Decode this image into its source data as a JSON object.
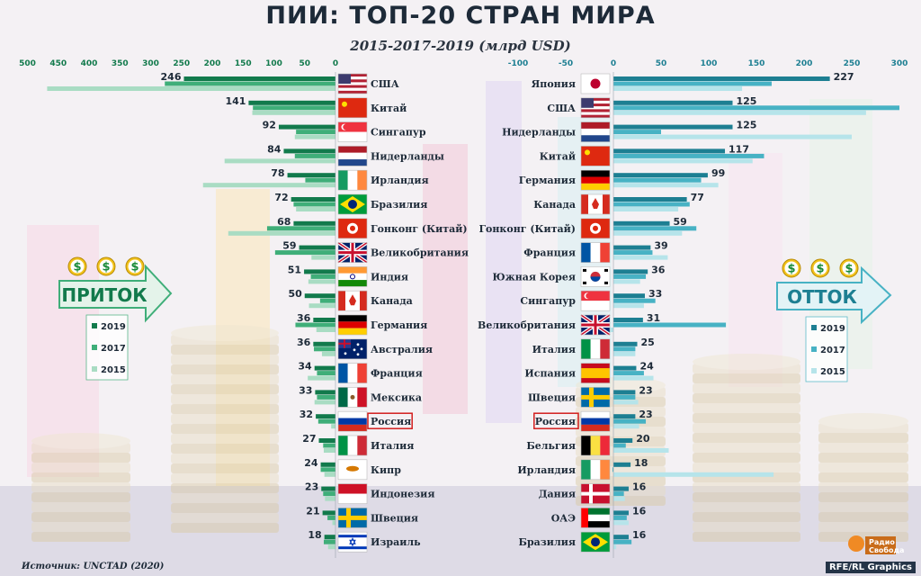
{
  "title": "ПИИ: ТОП-20 СТРАН МИРА",
  "subtitle": "2015-2017-2019 (млрд USD)",
  "source": "Источник: UNCTAD (2020)",
  "brand": "RFE/RL Graphics",
  "logo_text": [
    "Радио",
    "Свобода"
  ],
  "colors": {
    "inflow_2019": "#127a4c",
    "inflow_2017": "#3fae79",
    "inflow_2015": "#a9dcc3",
    "outflow_2019": "#1d7f92",
    "outflow_2017": "#47b2c4",
    "outflow_2015": "#b6e4ea",
    "russia_frame": "#d21d1d"
  },
  "chart_data": [
    {
      "type": "bar",
      "orientation": "horizontal",
      "direction": "right-to-left",
      "label": "ПРИТОК",
      "legend": [
        "2019",
        "2017",
        "2015"
      ],
      "legend_position": "left-middle",
      "xlim": [
        500,
        0
      ],
      "xticks": [
        500,
        450,
        400,
        350,
        300,
        250,
        200,
        150,
        100,
        50,
        0
      ],
      "categories": [
        "США",
        "Китай",
        "Сингапур",
        "Нидерланды",
        "Ирландия",
        "Бразилия",
        "Гонконг (Китай)",
        "Великобритания",
        "Индия",
        "Канада",
        "Германия",
        "Австралия",
        "Франция",
        "Мексика",
        "Россия",
        "Италия",
        "Кипр",
        "Индонезия",
        "Швеция",
        "Израиль"
      ],
      "highlight": "Россия",
      "series": [
        {
          "name": "2019",
          "values": [
            246,
            141,
            92,
            84,
            78,
            72,
            68,
            59,
            51,
            50,
            36,
            36,
            34,
            33,
            32,
            27,
            24,
            23,
            21,
            18
          ]
        },
        {
          "name": "2017",
          "values": [
            277,
            134,
            64,
            66,
            49,
            68,
            111,
            98,
            40,
            25,
            65,
            35,
            30,
            30,
            28,
            20,
            24,
            20,
            13,
            19
          ]
        },
        {
          "name": "2015",
          "values": [
            468,
            135,
            66,
            180,
            215,
            64,
            174,
            39,
            44,
            43,
            31,
            22,
            45,
            34,
            7,
            19,
            18,
            17,
            5,
            12
          ]
        }
      ]
    },
    {
      "type": "bar",
      "orientation": "horizontal",
      "direction": "left-to-right",
      "label": "ОТТОК",
      "legend": [
        "2019",
        "2017",
        "2015"
      ],
      "legend_position": "right-middle",
      "xlim": [
        -100,
        300
      ],
      "xticks": [
        -100,
        -50,
        0,
        50,
        100,
        150,
        200,
        250,
        300
      ],
      "categories": [
        "Япония",
        "США",
        "Нидерланды",
        "Китай",
        "Германия",
        "Канада",
        "Гонконг (Китай)",
        "Франция",
        "Южная Корея",
        "Сингапур",
        "Великобритания",
        "Италия",
        "Испания",
        "Швеция",
        "Россия",
        "Бельгия",
        "Ирландия",
        "Дания",
        "ОАЭ",
        "Бразилия"
      ],
      "highlight": "Россия",
      "series": [
        {
          "name": "2019",
          "values": [
            227,
            125,
            125,
            117,
            99,
            77,
            59,
            39,
            36,
            33,
            31,
            25,
            24,
            23,
            23,
            20,
            18,
            16,
            16,
            16
          ]
        },
        {
          "name": "2017",
          "values": [
            166,
            300,
            50,
            158,
            92,
            80,
            87,
            41,
            34,
            44,
            118,
            23,
            32,
            23,
            34,
            13,
            -1,
            11,
            14,
            19
          ]
        },
        {
          "name": "2015",
          "values": [
            135,
            265,
            250,
            146,
            110,
            68,
            72,
            57,
            28,
            32,
            -8,
            23,
            42,
            26,
            27,
            58,
            168,
            12,
            16,
            3
          ]
        }
      ]
    }
  ],
  "inflow_flags": [
    "usa",
    "china",
    "singapore",
    "netherlands",
    "ireland",
    "brazil",
    "hongkong",
    "uk",
    "india",
    "canada",
    "germany",
    "australia",
    "france",
    "mexico",
    "russia",
    "italy",
    "cyprus",
    "indonesia",
    "sweden",
    "israel"
  ],
  "outflow_flags": [
    "japan",
    "usa",
    "netherlands",
    "china",
    "germany",
    "canada",
    "hongkong",
    "france",
    "southkorea",
    "singapore",
    "uk",
    "italy",
    "spain",
    "sweden",
    "russia",
    "belgium",
    "ireland",
    "denmark",
    "uae",
    "brazil"
  ]
}
